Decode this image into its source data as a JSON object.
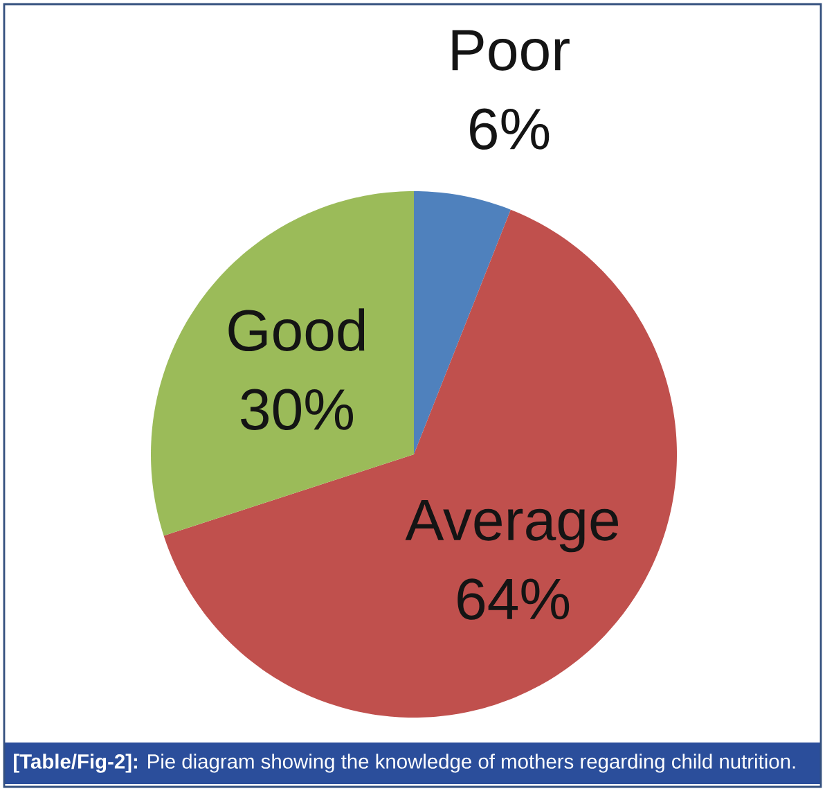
{
  "chart_data": {
    "type": "pie",
    "categories": [
      "Poor",
      "Average",
      "Good"
    ],
    "values": [
      6,
      64,
      30
    ],
    "value_labels": [
      "6%",
      "64%",
      "30%"
    ],
    "colors": [
      "#4f81bd",
      "#c0504d",
      "#9bbb59"
    ],
    "annotations": [
      "**[Table/Fig-2]:** Pie diagram showing the knowledge of mothers regarding child nutrition."
    ]
  }
}
